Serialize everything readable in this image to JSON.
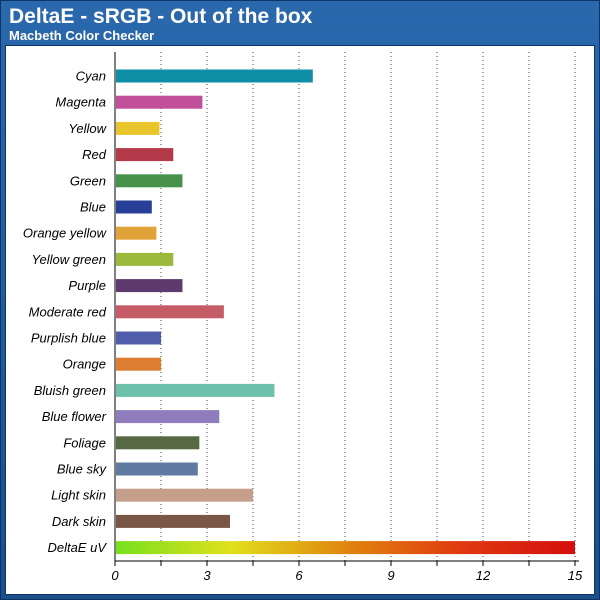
{
  "header": {
    "title": "DeltaE - sRGB - Out of the box",
    "subtitle": "Macbeth Color Checker"
  },
  "chart_data": {
    "type": "bar",
    "orientation": "horizontal",
    "title": "DeltaE - sRGB - Out of the box",
    "subtitle": "Macbeth Color Checker",
    "xlabel": "",
    "ylabel": "",
    "xlim": [
      0,
      15
    ],
    "ticks": [
      "0",
      "3",
      "6",
      "9",
      "12",
      "15"
    ],
    "grid": "vertical dotted",
    "categories": [
      "Cyan",
      "Magenta",
      "Yellow",
      "Red",
      "Green",
      "Blue",
      "Orange yellow",
      "Yellow green",
      "Purple",
      "Moderate red",
      "Purplish blue",
      "Orange",
      "Bluish green",
      "Blue flower",
      "Foliage",
      "Blue sky",
      "Light skin",
      "Dark skin",
      "DeltaE uV"
    ],
    "values": [
      6.45,
      2.85,
      1.45,
      1.9,
      2.2,
      1.2,
      1.35,
      1.9,
      2.2,
      3.55,
      1.5,
      1.5,
      5.2,
      3.4,
      2.75,
      2.7,
      4.5,
      3.75,
      15
    ],
    "colors": [
      "#0f8fa6",
      "#c0509a",
      "#e9c62b",
      "#b43a4a",
      "#47924a",
      "#283f98",
      "#e1a238",
      "#9bba3d",
      "#5f3a6e",
      "#c55b66",
      "#4f5dab",
      "#de7e33",
      "#6dc0aa",
      "#8e7cbc",
      "#566944",
      "#607aa2",
      "#c59f8c",
      "#7a5646",
      "gradient"
    ],
    "gradient_stops": [
      "#77e01e",
      "#e1e01c",
      "#e0860f",
      "#e03a10",
      "#d40e0e"
    ]
  }
}
